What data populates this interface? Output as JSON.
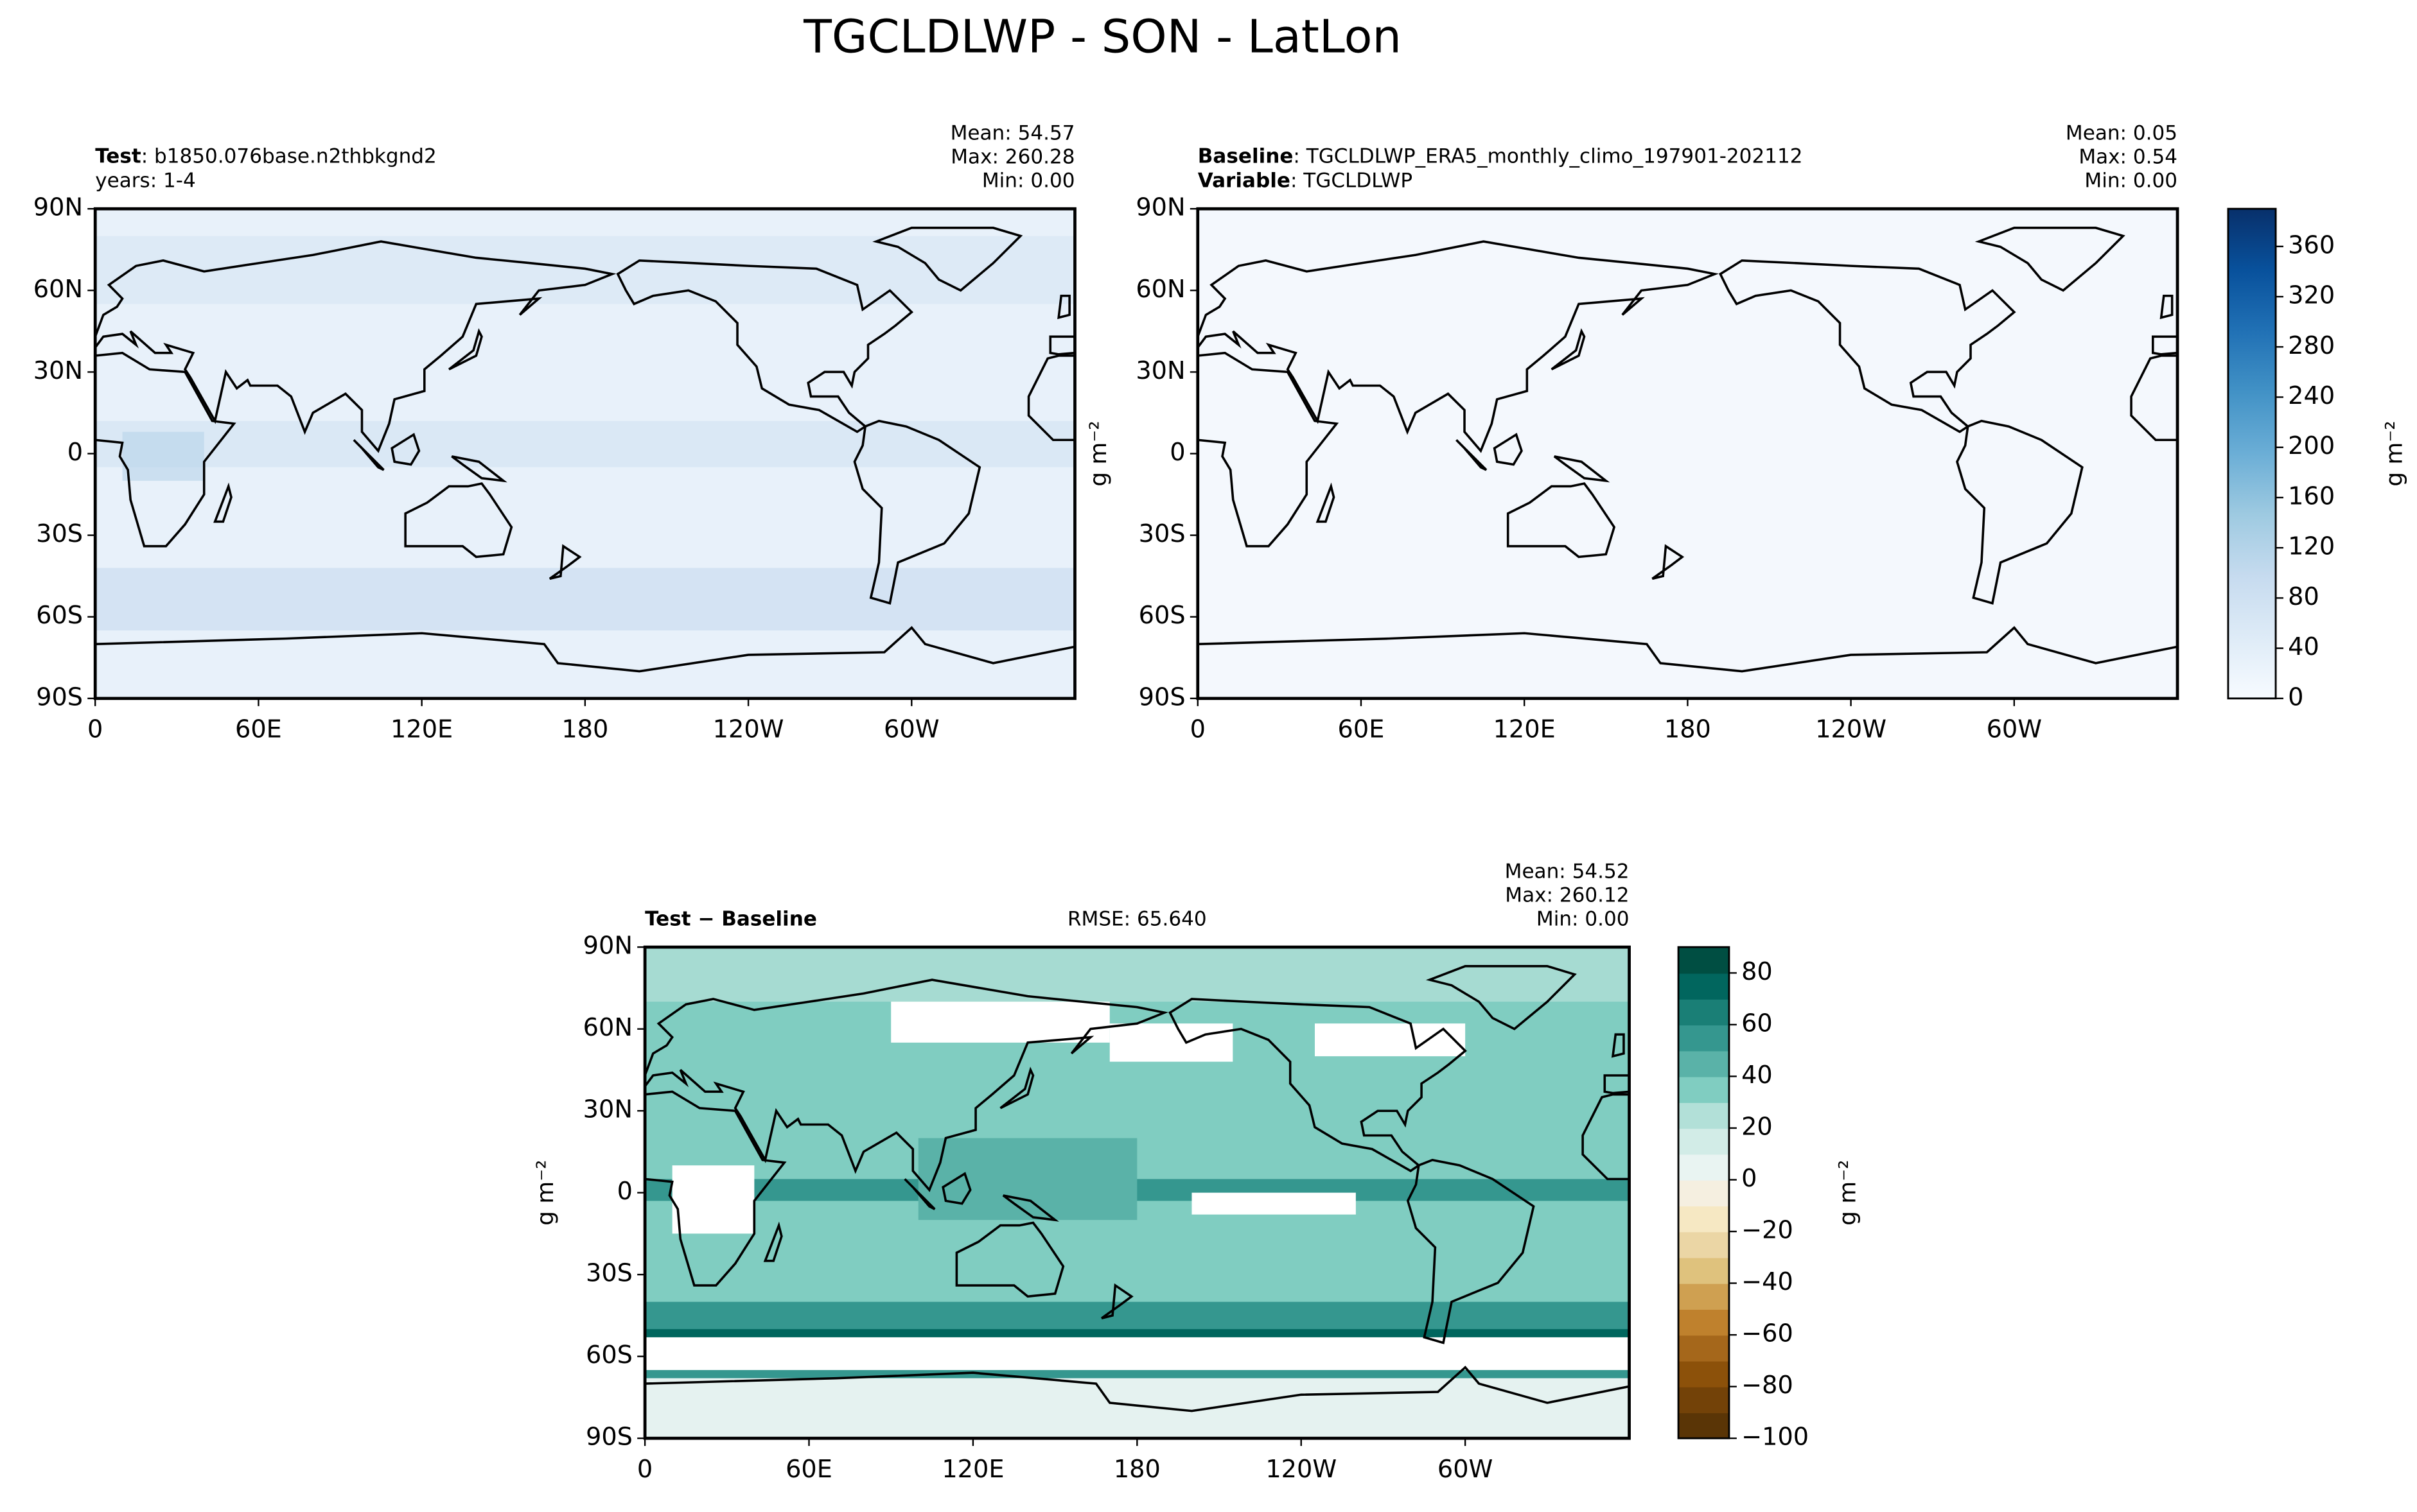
{
  "title": "TGCLDLWP - SON - LatLon",
  "panels": [
    {
      "heading": [
        {
          "bold": "Test",
          "text": ": b1850.076base.n2thbkgnd2"
        },
        {
          "text": "years: 1-4"
        }
      ],
      "stats": [
        "Mean: 54.57",
        "Max: 260.28",
        "Min:  0.00"
      ],
      "xlim": [
        0,
        360
      ],
      "ylim": [
        -90,
        90
      ],
      "xticks": [
        0,
        {
          "value": 60,
          "label": "60E"
        },
        {
          "value": 120,
          "label": "120E"
        },
        180,
        {
          "value": 240,
          "label": "120W"
        },
        {
          "value": 300,
          "label": "60W"
        }
      ],
      "yticks": [
        {
          "value": 90,
          "label": "90N"
        },
        {
          "value": 60,
          "label": "60N"
        },
        {
          "value": 30,
          "label": "30N"
        },
        0,
        {
          "value": -30,
          "label": "30S"
        },
        {
          "value": -60,
          "label": "60S"
        },
        {
          "value": -90,
          "label": "90S"
        }
      ]
    },
    {
      "heading": [
        {
          "bold": "Baseline",
          "text": ": TGCLDLWP_ERA5_monthly_climo_197901-202112"
        },
        {
          "bold": "Variable",
          "text": ": TGCLDLWP"
        }
      ],
      "stats": [
        "Mean:  0.05",
        "Max:  0.54",
        "Min:  0.00"
      ],
      "units": "g m⁻²",
      "xlim": [
        0,
        360
      ],
      "ylim": [
        -90,
        90
      ],
      "xticks": [
        0,
        {
          "value": 60,
          "label": "60E"
        },
        {
          "value": 120,
          "label": "120E"
        },
        180,
        {
          "value": 240,
          "label": "120W"
        },
        {
          "value": 300,
          "label": "60W"
        }
      ],
      "yticks": [
        {
          "value": 90,
          "label": "90N"
        },
        {
          "value": 60,
          "label": "60N"
        },
        {
          "value": 30,
          "label": "30N"
        },
        0,
        {
          "value": -30,
          "label": "30S"
        },
        {
          "value": -60,
          "label": "60S"
        },
        {
          "value": -90,
          "label": "90S"
        }
      ]
    },
    {
      "heading": [
        {
          "bold": "Test − Baseline"
        }
      ],
      "rmse": "RMSE: 65.640",
      "stats": [
        "Mean: 54.52",
        "Max: 260.12",
        "Min:  0.00"
      ],
      "units": "g m⁻²",
      "xlim": [
        0,
        360
      ],
      "ylim": [
        -90,
        90
      ],
      "xticks": [
        0,
        {
          "value": 60,
          "label": "60E"
        },
        {
          "value": 120,
          "label": "120E"
        },
        180,
        {
          "value": 240,
          "label": "120W"
        },
        {
          "value": 300,
          "label": "60W"
        }
      ],
      "yticks": [
        {
          "value": 90,
          "label": "90N"
        },
        {
          "value": 60,
          "label": "60N"
        },
        {
          "value": 30,
          "label": "30N"
        },
        0,
        {
          "value": -30,
          "label": "30S"
        },
        {
          "value": -60,
          "label": "60S"
        },
        {
          "value": -90,
          "label": "90S"
        }
      ]
    }
  ],
  "colorbars": [
    {
      "lim": [
        0,
        390
      ],
      "ticks": [
        0,
        40,
        80,
        120,
        160,
        200,
        240,
        280,
        320,
        360
      ],
      "colors": [
        "#f7fbff",
        "#deebf7",
        "#c6dbef",
        "#9ecae1",
        "#6baed6",
        "#4292c6",
        "#2171b5",
        "#08519c",
        "#08306b"
      ],
      "units": "g m⁻²"
    },
    {
      "lim": [
        -100,
        90
      ],
      "ticks": [
        {
          "value": -100,
          "label": "−100"
        },
        {
          "value": -80,
          "label": "−80"
        },
        {
          "value": -60,
          "label": "−60"
        },
        {
          "value": -40,
          "label": "−40"
        },
        {
          "value": -20,
          "label": "−20"
        },
        0,
        20,
        40,
        60,
        80
      ],
      "colors": [
        "#5a3506",
        "#734208",
        "#8c510a",
        "#a5671b",
        "#bf812d",
        "#cfa051",
        "#dfc27d",
        "#ebd6a5",
        "#f6e8c3",
        "#f5efe0",
        "#e9f4f2",
        "#d2ece7",
        "#b2e0d8",
        "#80cdc1",
        "#5ab2a8",
        "#35978f",
        "#1a7f76",
        "#01665e",
        "#004e42"
      ],
      "units": "g m⁻²"
    }
  ]
}
